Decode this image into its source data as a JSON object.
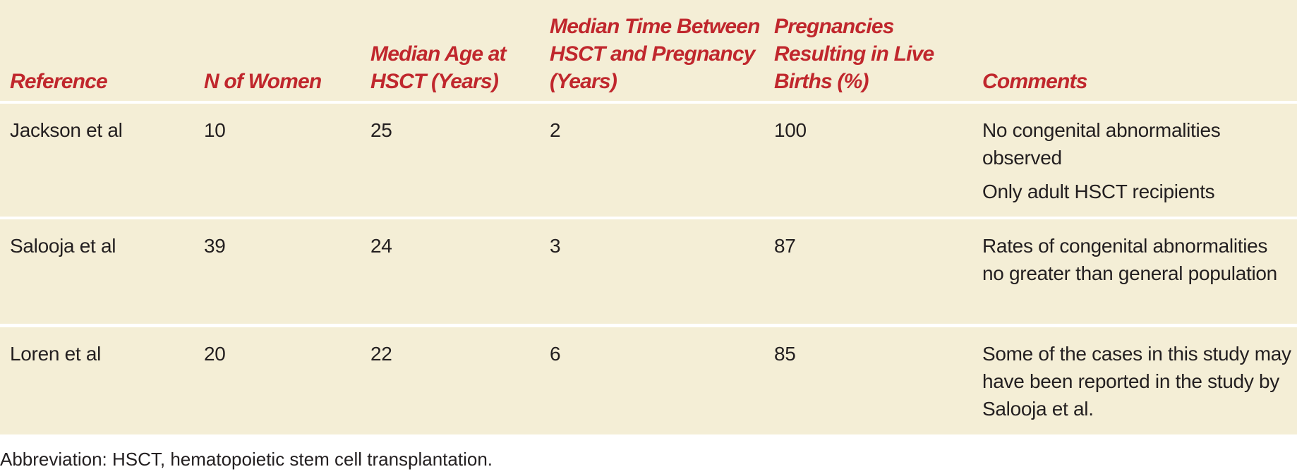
{
  "table": {
    "headers": [
      "Reference",
      "N of Women",
      "Median Age at HSCT (Years)",
      "Median Time Between HSCT and Pregnancy (Years)",
      "Pregnancies Resulting in Live Births (%)",
      "Comments"
    ],
    "rows": [
      [
        "Jackson et al",
        10,
        25,
        2,
        100,
        [
          "No congenital abnormalities observed",
          "Only adult HSCT recipients"
        ]
      ],
      [
        "Salooja et al",
        39,
        24,
        3,
        87,
        [
          "Rates of congenital abnormalities no greater than general population"
        ]
      ],
      [
        "Loren et al",
        20,
        22,
        6,
        85,
        [
          "Some of the cases in this study may have been reported in the study by Salooja et al."
        ]
      ]
    ]
  },
  "footnote": "Abbreviation: HSCT, hematopoietic stem cell transplantation."
}
